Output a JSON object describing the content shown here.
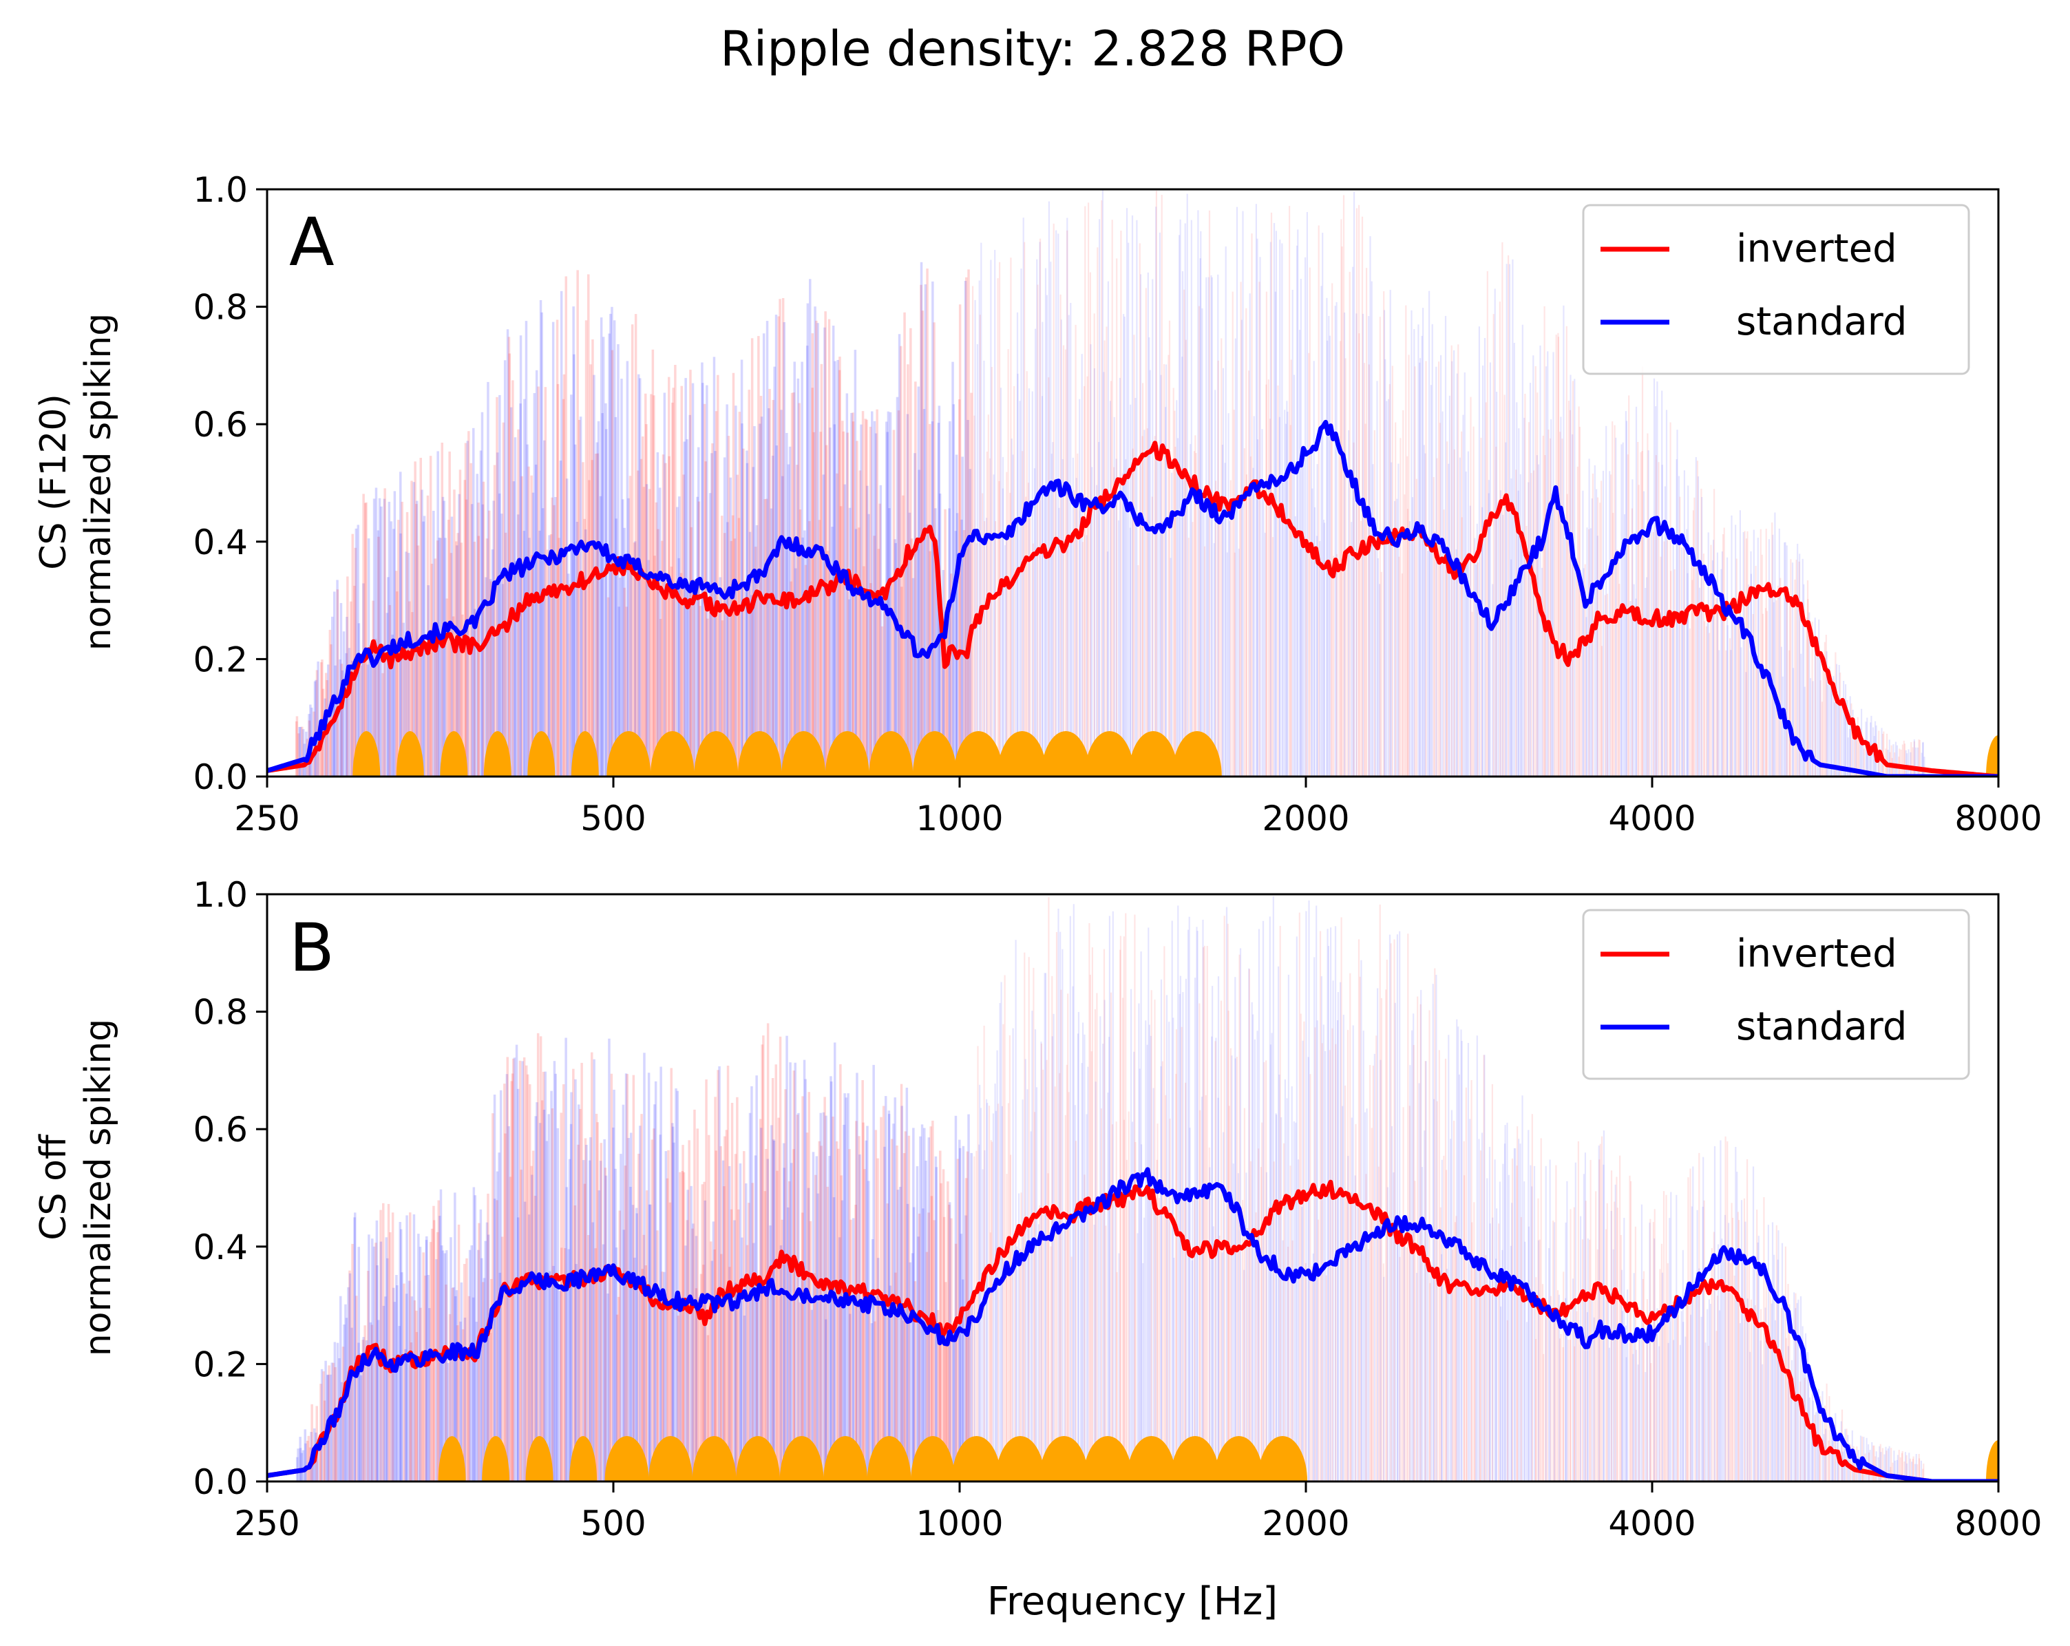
{
  "figure_title": "Ripple density: 2.828 RPO",
  "chart_data": [
    {
      "type": "line",
      "panel_label": "A",
      "title": "Ripple density: 2.828 RPO",
      "ylabel_line1": "CS (F120)",
      "ylabel_line2": "normalized spiking",
      "xlabel": "",
      "xscale": "log2",
      "xlim": [
        250,
        8000
      ],
      "ylim": [
        0,
        1
      ],
      "x_ticks": [
        250,
        500,
        1000,
        2000,
        4000,
        8000
      ],
      "x_tick_labels": [
        "250",
        "500",
        "1000",
        "2000",
        "4000",
        "8000"
      ],
      "y_ticks": [
        0,
        0.2,
        0.4,
        0.6,
        0.8,
        1.0
      ],
      "y_tick_labels": [
        "0.0",
        "0.2",
        "0.4",
        "0.6",
        "0.8",
        "1.0"
      ],
      "legend": {
        "placement": "top-right",
        "entries": [
          "inverted",
          "standard"
        ]
      },
      "series": [
        {
          "name": "inverted",
          "color": "#ff0000",
          "x": [
            250,
            270,
            285,
            300,
            310,
            320,
            340,
            360,
            380,
            400,
            420,
            450,
            480,
            500,
            520,
            550,
            580,
            600,
            620,
            650,
            680,
            700,
            730,
            760,
            800,
            840,
            880,
            900,
            920,
            950,
            970,
            990,
            1010,
            1030,
            1060,
            1100,
            1150,
            1200,
            1250,
            1300,
            1380,
            1450,
            1500,
            1550,
            1600,
            1700,
            1750,
            1800,
            1900,
            2000,
            2100,
            2200,
            2300,
            2400,
            2500,
            2600,
            2700,
            2800,
            2900,
            3000,
            3100,
            3200,
            3300,
            3400,
            3500,
            3600,
            3800,
            4000,
            4200,
            4400,
            4600,
            4800,
            5000,
            5200,
            5400,
            5600,
            6000,
            6400,
            7000,
            8000
          ],
          "y": [
            0.01,
            0.02,
            0.1,
            0.19,
            0.22,
            0.2,
            0.22,
            0.23,
            0.22,
            0.25,
            0.3,
            0.32,
            0.34,
            0.36,
            0.35,
            0.32,
            0.29,
            0.3,
            0.28,
            0.29,
            0.31,
            0.3,
            0.3,
            0.32,
            0.34,
            0.3,
            0.33,
            0.38,
            0.4,
            0.42,
            0.2,
            0.22,
            0.2,
            0.26,
            0.3,
            0.33,
            0.37,
            0.39,
            0.4,
            0.45,
            0.5,
            0.56,
            0.55,
            0.52,
            0.5,
            0.46,
            0.48,
            0.5,
            0.45,
            0.4,
            0.35,
            0.38,
            0.4,
            0.41,
            0.42,
            0.38,
            0.35,
            0.38,
            0.44,
            0.47,
            0.4,
            0.28,
            0.22,
            0.2,
            0.23,
            0.27,
            0.28,
            0.27,
            0.27,
            0.28,
            0.28,
            0.3,
            0.32,
            0.32,
            0.28,
            0.2,
            0.08,
            0.02,
            0.01,
            0.0
          ]
        },
        {
          "name": "standard",
          "color": "#0000ff",
          "x": [
            250,
            270,
            285,
            300,
            310,
            320,
            340,
            360,
            380,
            400,
            420,
            450,
            480,
            500,
            520,
            550,
            580,
            600,
            620,
            650,
            680,
            700,
            730,
            760,
            800,
            840,
            880,
            900,
            920,
            950,
            970,
            990,
            1010,
            1030,
            1060,
            1100,
            1150,
            1200,
            1250,
            1300,
            1380,
            1450,
            1500,
            1550,
            1600,
            1700,
            1750,
            1800,
            1900,
            2000,
            2100,
            2200,
            2300,
            2400,
            2500,
            2600,
            2700,
            2800,
            2900,
            3000,
            3100,
            3200,
            3300,
            3400,
            3500,
            3600,
            3800,
            4000,
            4200,
            4400,
            4600,
            4800,
            5000,
            5200,
            5400,
            5600,
            6000,
            6400,
            7000,
            8000
          ],
          "y": [
            0.01,
            0.03,
            0.12,
            0.21,
            0.2,
            0.22,
            0.24,
            0.25,
            0.26,
            0.34,
            0.36,
            0.38,
            0.4,
            0.37,
            0.36,
            0.34,
            0.32,
            0.33,
            0.31,
            0.33,
            0.35,
            0.4,
            0.39,
            0.38,
            0.33,
            0.3,
            0.27,
            0.24,
            0.21,
            0.22,
            0.24,
            0.33,
            0.4,
            0.42,
            0.4,
            0.41,
            0.46,
            0.5,
            0.48,
            0.46,
            0.47,
            0.43,
            0.42,
            0.45,
            0.48,
            0.44,
            0.46,
            0.5,
            0.5,
            0.55,
            0.6,
            0.5,
            0.42,
            0.4,
            0.42,
            0.4,
            0.36,
            0.3,
            0.26,
            0.3,
            0.36,
            0.4,
            0.48,
            0.4,
            0.3,
            0.33,
            0.4,
            0.43,
            0.41,
            0.36,
            0.3,
            0.25,
            0.18,
            0.1,
            0.04,
            0.02,
            0.01,
            0.0,
            0.0,
            0.0
          ]
        }
      ]
    },
    {
      "type": "line",
      "panel_label": "B",
      "title": "",
      "ylabel_line1": "CS off",
      "ylabel_line2": "normalized spiking",
      "xlabel": "Frequency [Hz]",
      "xscale": "log2",
      "xlim": [
        250,
        8000
      ],
      "ylim": [
        0,
        1
      ],
      "x_ticks": [
        250,
        500,
        1000,
        2000,
        4000,
        8000
      ],
      "x_tick_labels": [
        "250",
        "500",
        "1000",
        "2000",
        "4000",
        "8000"
      ],
      "y_ticks": [
        0,
        0.2,
        0.4,
        0.6,
        0.8,
        1.0
      ],
      "y_tick_labels": [
        "0.0",
        "0.2",
        "0.4",
        "0.6",
        "0.8",
        "1.0"
      ],
      "legend": {
        "placement": "top-right",
        "entries": [
          "inverted",
          "standard"
        ]
      },
      "series": [
        {
          "name": "inverted",
          "color": "#ff0000",
          "x": [
            250,
            270,
            285,
            300,
            310,
            320,
            340,
            360,
            380,
            400,
            420,
            450,
            480,
            500,
            520,
            550,
            580,
            600,
            620,
            650,
            680,
            700,
            730,
            760,
            800,
            840,
            880,
            900,
            920,
            950,
            970,
            990,
            1010,
            1030,
            1060,
            1100,
            1150,
            1200,
            1250,
            1300,
            1380,
            1450,
            1500,
            1550,
            1600,
            1700,
            1750,
            1800,
            1900,
            2000,
            2100,
            2200,
            2300,
            2400,
            2500,
            2600,
            2700,
            2800,
            2900,
            3000,
            3100,
            3200,
            3300,
            3400,
            3500,
            3600,
            3800,
            4000,
            4200,
            4400,
            4600,
            4800,
            5000,
            5200,
            5400,
            5600,
            6000,
            6400,
            7000,
            8000
          ],
          "y": [
            0.01,
            0.02,
            0.1,
            0.21,
            0.22,
            0.2,
            0.21,
            0.22,
            0.22,
            0.32,
            0.34,
            0.34,
            0.35,
            0.36,
            0.34,
            0.3,
            0.3,
            0.28,
            0.32,
            0.34,
            0.35,
            0.38,
            0.36,
            0.34,
            0.33,
            0.32,
            0.3,
            0.3,
            0.28,
            0.27,
            0.25,
            0.27,
            0.3,
            0.32,
            0.36,
            0.4,
            0.44,
            0.46,
            0.45,
            0.47,
            0.48,
            0.5,
            0.46,
            0.42,
            0.39,
            0.4,
            0.4,
            0.42,
            0.47,
            0.49,
            0.5,
            0.48,
            0.46,
            0.42,
            0.4,
            0.35,
            0.33,
            0.32,
            0.32,
            0.34,
            0.32,
            0.3,
            0.28,
            0.3,
            0.32,
            0.33,
            0.3,
            0.28,
            0.3,
            0.33,
            0.34,
            0.3,
            0.26,
            0.2,
            0.12,
            0.06,
            0.02,
            0.01,
            0.0,
            0.0
          ]
        },
        {
          "name": "standard",
          "color": "#0000ff",
          "x": [
            250,
            270,
            285,
            300,
            310,
            320,
            340,
            360,
            380,
            400,
            420,
            450,
            480,
            500,
            520,
            550,
            580,
            600,
            620,
            650,
            680,
            700,
            730,
            760,
            800,
            840,
            880,
            900,
            920,
            950,
            970,
            990,
            1010,
            1030,
            1060,
            1100,
            1150,
            1200,
            1250,
            1300,
            1380,
            1450,
            1500,
            1550,
            1600,
            1700,
            1750,
            1800,
            1900,
            2000,
            2100,
            2200,
            2300,
            2400,
            2500,
            2600,
            2700,
            2800,
            2900,
            3000,
            3100,
            3200,
            3300,
            3400,
            3500,
            3600,
            3800,
            4000,
            4200,
            4400,
            4600,
            4800,
            5000,
            5200,
            5400,
            5600,
            6000,
            6400,
            7000,
            8000
          ],
          "y": [
            0.01,
            0.02,
            0.1,
            0.2,
            0.22,
            0.2,
            0.21,
            0.22,
            0.22,
            0.32,
            0.34,
            0.34,
            0.35,
            0.36,
            0.34,
            0.32,
            0.3,
            0.31,
            0.3,
            0.31,
            0.33,
            0.33,
            0.32,
            0.32,
            0.31,
            0.3,
            0.29,
            0.28,
            0.27,
            0.26,
            0.24,
            0.25,
            0.25,
            0.28,
            0.32,
            0.36,
            0.4,
            0.42,
            0.44,
            0.46,
            0.5,
            0.52,
            0.5,
            0.48,
            0.49,
            0.5,
            0.45,
            0.4,
            0.36,
            0.35,
            0.37,
            0.4,
            0.42,
            0.44,
            0.44,
            0.42,
            0.4,
            0.38,
            0.36,
            0.34,
            0.33,
            0.3,
            0.28,
            0.26,
            0.24,
            0.26,
            0.25,
            0.25,
            0.3,
            0.35,
            0.39,
            0.38,
            0.36,
            0.3,
            0.22,
            0.12,
            0.04,
            0.01,
            0.0,
            0.0
          ]
        }
      ]
    }
  ]
}
